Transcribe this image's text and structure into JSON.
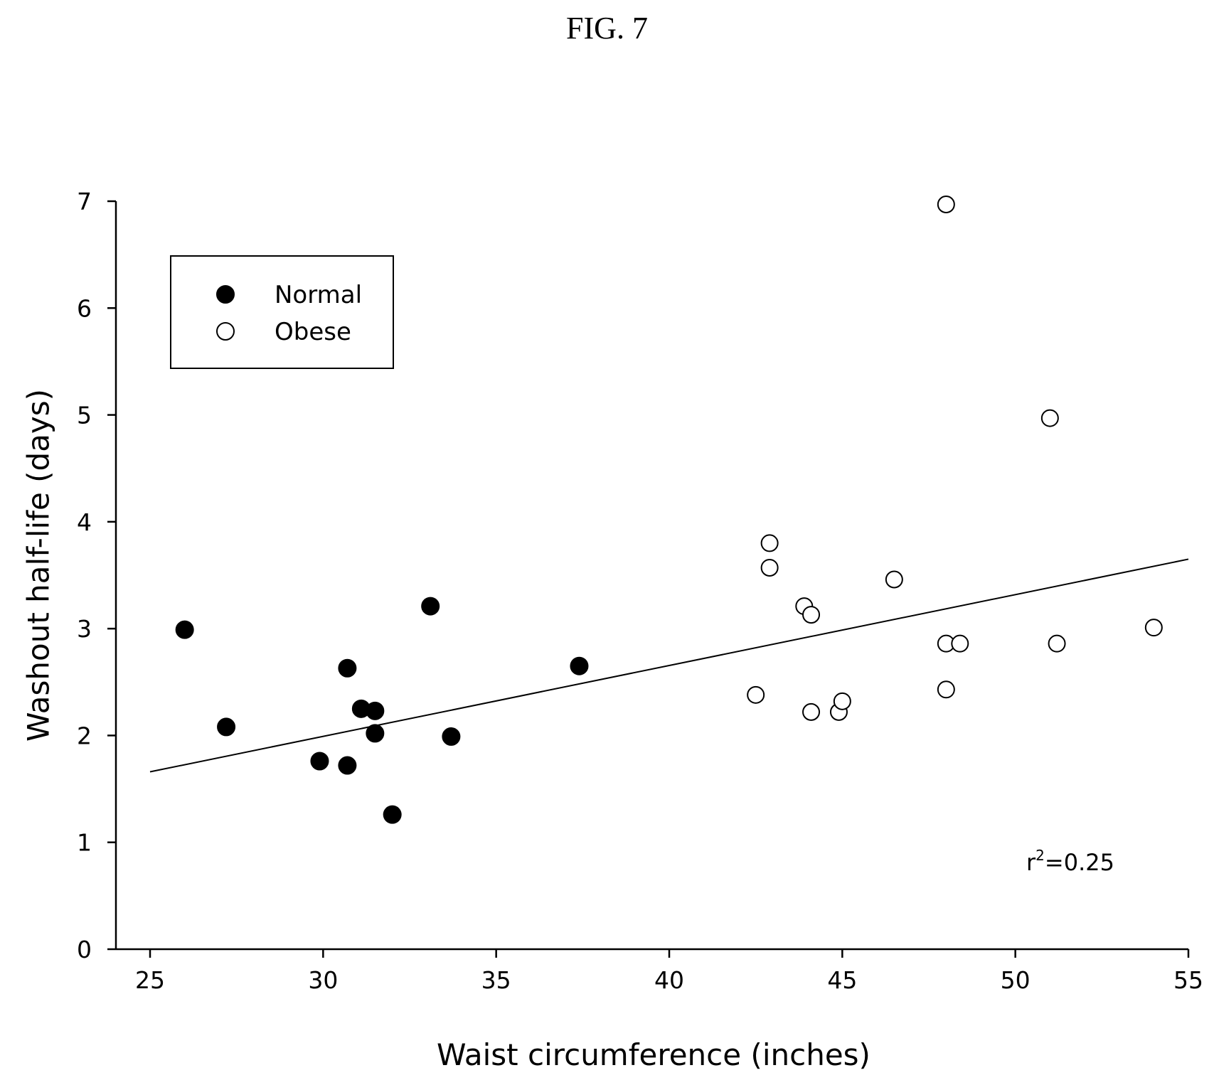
{
  "figure_label": "FIG. 7",
  "chart_data": {
    "type": "scatter",
    "xlabel": "Waist circumference (inches)",
    "ylabel": "Washout half-life (days)",
    "xlim": [
      24,
      55
    ],
    "ylim": [
      0,
      7
    ],
    "x_ticks": [
      25,
      30,
      35,
      40,
      45,
      50,
      55
    ],
    "y_ticks": [
      0,
      1,
      2,
      3,
      4,
      5,
      6,
      7
    ],
    "grid": false,
    "legend_position": "top-left",
    "series": [
      {
        "name": "Normal",
        "marker": "filled-circle",
        "color": "#000000",
        "points": [
          {
            "x": 26.0,
            "y": 2.99
          },
          {
            "x": 27.2,
            "y": 2.08
          },
          {
            "x": 29.9,
            "y": 1.76
          },
          {
            "x": 30.7,
            "y": 2.63
          },
          {
            "x": 30.7,
            "y": 1.72
          },
          {
            "x": 31.1,
            "y": 2.25
          },
          {
            "x": 31.5,
            "y": 2.23
          },
          {
            "x": 31.5,
            "y": 2.02
          },
          {
            "x": 32.0,
            "y": 1.26
          },
          {
            "x": 33.1,
            "y": 3.21
          },
          {
            "x": 33.7,
            "y": 1.99
          },
          {
            "x": 37.4,
            "y": 2.65
          }
        ]
      },
      {
        "name": "Obese",
        "marker": "open-circle",
        "color": "#000000",
        "points": [
          {
            "x": 42.5,
            "y": 2.38
          },
          {
            "x": 42.9,
            "y": 3.8
          },
          {
            "x": 42.9,
            "y": 3.57
          },
          {
            "x": 43.9,
            "y": 3.21
          },
          {
            "x": 44.1,
            "y": 3.13
          },
          {
            "x": 44.1,
            "y": 2.22
          },
          {
            "x": 44.9,
            "y": 2.22
          },
          {
            "x": 45.0,
            "y": 2.32
          },
          {
            "x": 46.5,
            "y": 3.46
          },
          {
            "x": 48.0,
            "y": 6.97
          },
          {
            "x": 48.0,
            "y": 2.86
          },
          {
            "x": 48.4,
            "y": 2.86
          },
          {
            "x": 48.0,
            "y": 2.43
          },
          {
            "x": 51.0,
            "y": 4.97
          },
          {
            "x": 51.2,
            "y": 2.86
          },
          {
            "x": 54.0,
            "y": 3.01
          }
        ]
      }
    ],
    "regression_line": {
      "x": [
        25,
        55
      ],
      "y": [
        1.66,
        3.65
      ]
    },
    "annotation": {
      "prefix": "r",
      "superscript": "2",
      "suffix": "=0.25"
    }
  }
}
